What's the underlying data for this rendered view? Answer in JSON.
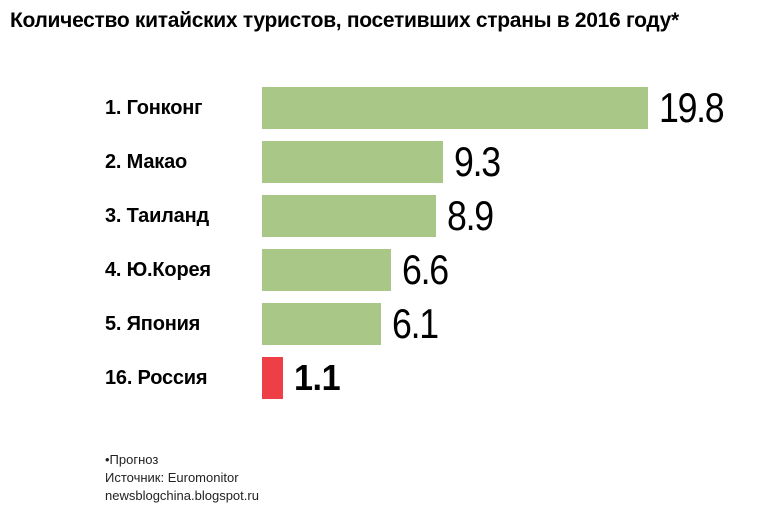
{
  "title": "Количество китайских туристов, посетивших страны в 2016 году*",
  "chart_data": {
    "type": "bar",
    "orientation": "horizontal",
    "title": "Количество китайских туристов, посетивших страны в 2016 году*",
    "categories": [
      "1. Гонконг",
      "2. Макао",
      "3. Таиланд",
      "4. Ю.Корея",
      "5. Япония",
      "16. Россия"
    ],
    "values": [
      19.8,
      9.3,
      8.9,
      6.6,
      6.1,
      1.1
    ],
    "value_labels": [
      "19.8",
      "9.3",
      "8.9",
      "6.6",
      "6.1",
      "1.1"
    ],
    "highlight_index": 5,
    "xlim": [
      0,
      20
    ],
    "grid": false,
    "legend": false,
    "axis_ticks_visible": false
  },
  "colors": {
    "bar_green": "#a9c888",
    "bar_red": "#ee3e46",
    "text": "#000000",
    "footer_text": "#222222",
    "background": "#ffffff"
  },
  "footer": {
    "lines": [
      "•Прогноз",
      "Источник: Euromonitor",
      "newsblogchina.blogspot.ru"
    ]
  }
}
